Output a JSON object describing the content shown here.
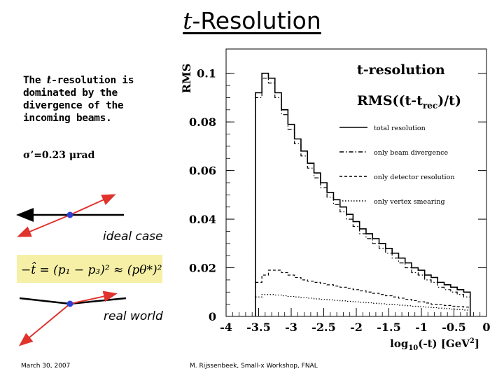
{
  "slide": {
    "title_var": "t",
    "title_rest": "-Resolution",
    "intro_a": "The ",
    "intro_var": "t",
    "intro_b": "-resolution is dominated by the divergence of the incoming beams.",
    "sigma": "σ’=0.23 μrad",
    "ideal_label": "ideal case",
    "real_label": "real world",
    "formula": "−t̂ = (p₁ − p₃)² ≈ (pθ*)²",
    "footer_date": "March 30, 2007",
    "footer_author": "M. Rijssenbeek, Small-x Workshop, FNAL"
  },
  "colors": {
    "arrow": "#e0332e",
    "beam": "#000000",
    "vertex": "#2e3fd6",
    "formula_bg": "#f6f0a6"
  },
  "chart_data": {
    "type": "line",
    "ylabel": "RMS",
    "xlabel": "log10(-t) [GeV²]",
    "xlim": [
      -4,
      0
    ],
    "ylim": [
      0,
      0.11
    ],
    "xticks": [
      "-4",
      "-3.5",
      "-3",
      "-2.5",
      "-2",
      "-1.5",
      "-1",
      "-0.5",
      "0"
    ],
    "yticks": [
      "0",
      "0.02",
      "0.04",
      "0.06",
      "0.08",
      "0.1"
    ],
    "legend_title": "t-resolution",
    "legend_formula": "RMS((t-trec)/t)",
    "legend_position": "top-right",
    "bin_edges": [
      -3.55,
      -3.45,
      -3.35,
      -3.25,
      -3.15,
      -3.05,
      -2.95,
      -2.85,
      -2.75,
      -2.65,
      -2.55,
      -2.45,
      -2.35,
      -2.25,
      -2.15,
      -2.05,
      -1.95,
      -1.85,
      -1.75,
      -1.65,
      -1.55,
      -1.45,
      -1.35,
      -1.25,
      -1.15,
      -1.05,
      -0.95,
      -0.85,
      -0.75,
      -0.65,
      -0.55,
      -0.45,
      -0.35,
      -0.25
    ],
    "series": [
      {
        "name": "total resolution",
        "style": "solid",
        "values": [
          0.092,
          0.1,
          0.098,
          0.092,
          0.085,
          0.079,
          0.073,
          0.068,
          0.063,
          0.059,
          0.055,
          0.051,
          0.048,
          0.045,
          0.042,
          0.039,
          0.036,
          0.034,
          0.032,
          0.03,
          0.028,
          0.026,
          0.024,
          0.022,
          0.02,
          0.019,
          0.017,
          0.016,
          0.014,
          0.013,
          0.012,
          0.011,
          0.01
        ]
      },
      {
        "name": "only beam divergence",
        "style": "dashdot",
        "values": [
          0.09,
          0.098,
          0.096,
          0.09,
          0.083,
          0.077,
          0.071,
          0.066,
          0.061,
          0.057,
          0.053,
          0.049,
          0.046,
          0.043,
          0.04,
          0.037,
          0.034,
          0.032,
          0.03,
          0.028,
          0.026,
          0.024,
          0.022,
          0.02,
          0.018,
          0.017,
          0.015,
          0.014,
          0.012,
          0.011,
          0.01,
          0.009,
          0.008
        ]
      },
      {
        "name": "only detector resolution",
        "style": "dashed",
        "values": [
          0.014,
          0.017,
          0.019,
          0.019,
          0.018,
          0.017,
          0.016,
          0.015,
          0.0145,
          0.014,
          0.0135,
          0.013,
          0.0125,
          0.012,
          0.0115,
          0.011,
          0.0105,
          0.01,
          0.0095,
          0.009,
          0.0085,
          0.008,
          0.0075,
          0.007,
          0.0065,
          0.006,
          0.0055,
          0.005,
          0.0048,
          0.0045,
          0.0042,
          0.004,
          0.0038
        ]
      },
      {
        "name": "only vertex smearing",
        "style": "dotted",
        "values": [
          0.008,
          0.009,
          0.009,
          0.0088,
          0.0085,
          0.0082,
          0.008,
          0.0078,
          0.0075,
          0.0072,
          0.007,
          0.0068,
          0.0066,
          0.0064,
          0.0062,
          0.006,
          0.0058,
          0.0056,
          0.0054,
          0.0052,
          0.005,
          0.0048,
          0.0046,
          0.0044,
          0.0042,
          0.004,
          0.0038,
          0.0036,
          0.0034,
          0.0032,
          0.003,
          0.0028,
          0.0026
        ]
      }
    ]
  }
}
